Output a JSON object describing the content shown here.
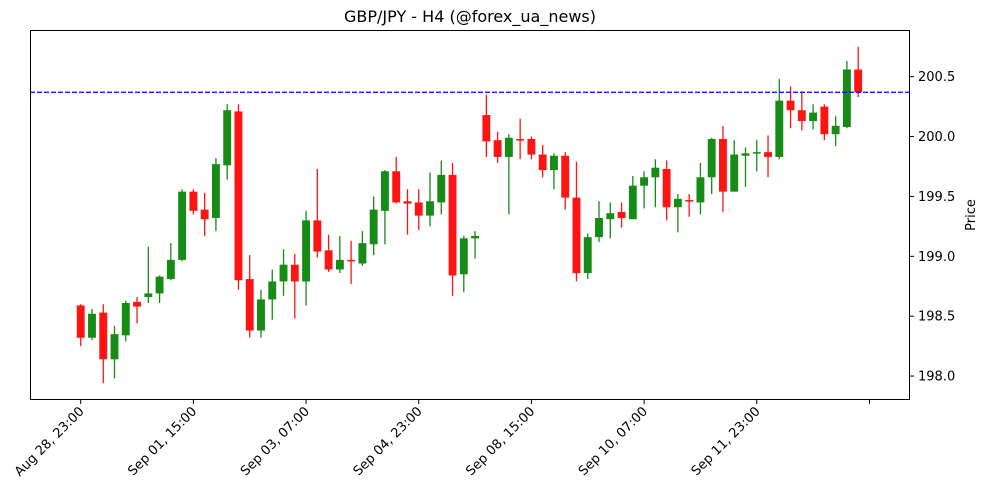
{
  "chart_data": {
    "type": "candlestick",
    "title": "GBP/JPY - H4 (@forex_ua_news)",
    "xlabel": "",
    "ylabel": "Price",
    "y_axis_side": "right",
    "ylim": [
      197.8,
      200.89
    ],
    "xlim": [
      -4.5,
      73.6
    ],
    "yticks": [
      198.0,
      198.5,
      199.0,
      199.5,
      200.0,
      200.5
    ],
    "ytick_labels": [
      "198.0",
      "198.5",
      "199.0",
      "199.5",
      "200.0",
      "200.5"
    ],
    "xticks": [
      0,
      10,
      20,
      30,
      40,
      50,
      60,
      70
    ],
    "xtick_labels": [
      "Aug 28, 23:00",
      "Sep 01, 15:00",
      "Sep 03, 07:00",
      "Sep 04, 23:00",
      "Sep 08, 15:00",
      "Sep 10, 07:00",
      "Sep 11, 23:00",
      ""
    ],
    "grid": false,
    "colors": {
      "up": "#168b16",
      "down": "#ff1414",
      "hline": "#0000ff"
    },
    "hline": {
      "value": 200.37,
      "style": "dashed"
    },
    "ohlc": [
      [
        198.59,
        198.6,
        198.25,
        198.32
      ],
      [
        198.32,
        198.56,
        198.3,
        198.52
      ],
      [
        198.53,
        198.6,
        197.94,
        198.14
      ],
      [
        198.14,
        198.42,
        197.98,
        198.35
      ],
      [
        198.34,
        198.63,
        198.29,
        198.61
      ],
      [
        198.62,
        198.66,
        198.44,
        198.58
      ],
      [
        198.66,
        199.08,
        198.61,
        198.69
      ],
      [
        198.69,
        198.84,
        198.61,
        198.83
      ],
      [
        198.81,
        199.11,
        198.8,
        198.97
      ],
      [
        198.97,
        199.56,
        198.96,
        199.54
      ],
      [
        199.54,
        199.56,
        199.35,
        199.38
      ],
      [
        199.39,
        199.53,
        199.17,
        199.31
      ],
      [
        199.32,
        199.82,
        199.21,
        199.77
      ],
      [
        199.76,
        200.27,
        199.64,
        200.22
      ],
      [
        200.21,
        200.27,
        198.72,
        198.8
      ],
      [
        198.81,
        199.01,
        198.32,
        198.38
      ],
      [
        198.38,
        198.72,
        198.32,
        198.64
      ],
      [
        198.64,
        198.89,
        198.47,
        198.79
      ],
      [
        198.79,
        199.06,
        198.67,
        198.93
      ],
      [
        198.93,
        199.02,
        198.48,
        198.79
      ],
      [
        198.79,
        199.38,
        198.59,
        199.3
      ],
      [
        199.3,
        199.73,
        198.99,
        199.04
      ],
      [
        199.05,
        199.18,
        198.87,
        198.89
      ],
      [
        198.89,
        199.17,
        198.86,
        198.97
      ],
      [
        198.97,
        199.13,
        198.77,
        198.96
      ],
      [
        198.94,
        199.21,
        198.92,
        199.11
      ],
      [
        199.1,
        199.5,
        199.01,
        199.39
      ],
      [
        199.38,
        199.72,
        199.1,
        199.71
      ],
      [
        199.71,
        199.83,
        199.44,
        199.45
      ],
      [
        199.46,
        199.56,
        199.18,
        199.44
      ],
      [
        199.45,
        199.56,
        199.22,
        199.34
      ],
      [
        199.34,
        199.7,
        199.25,
        199.46
      ],
      [
        199.45,
        199.8,
        199.35,
        199.68
      ],
      [
        199.68,
        199.78,
        198.67,
        198.84
      ],
      [
        198.85,
        199.17,
        198.7,
        199.15
      ],
      [
        199.15,
        199.21,
        198.98,
        199.17
      ],
      [
        200.18,
        200.35,
        199.83,
        199.96
      ],
      [
        199.97,
        200.04,
        199.78,
        199.83
      ],
      [
        199.83,
        200.02,
        199.35,
        199.99
      ],
      [
        199.98,
        200.15,
        199.81,
        199.97
      ],
      [
        199.98,
        200.0,
        199.81,
        199.85
      ],
      [
        199.85,
        199.93,
        199.66,
        199.72
      ],
      [
        199.72,
        199.86,
        199.56,
        199.84
      ],
      [
        199.84,
        199.87,
        199.39,
        199.49
      ],
      [
        199.49,
        199.79,
        198.79,
        198.86
      ],
      [
        198.86,
        199.19,
        198.81,
        199.16
      ],
      [
        199.16,
        199.46,
        199.12,
        199.32
      ],
      [
        199.31,
        199.45,
        199.15,
        199.36
      ],
      [
        199.37,
        199.45,
        199.24,
        199.32
      ],
      [
        199.31,
        199.67,
        199.31,
        199.59
      ],
      [
        199.59,
        199.71,
        199.4,
        199.66
      ],
      [
        199.66,
        199.81,
        199.41,
        199.74
      ],
      [
        199.73,
        199.8,
        199.3,
        199.41
      ],
      [
        199.41,
        199.52,
        199.2,
        199.48
      ],
      [
        199.47,
        199.52,
        199.33,
        199.46
      ],
      [
        199.45,
        199.78,
        199.35,
        199.66
      ],
      [
        199.66,
        199.99,
        199.52,
        199.98
      ],
      [
        199.98,
        200.09,
        199.37,
        199.54
      ],
      [
        199.54,
        199.97,
        199.54,
        199.85
      ],
      [
        199.84,
        199.91,
        199.58,
        199.86
      ],
      [
        199.86,
        199.97,
        199.71,
        199.87
      ],
      [
        199.87,
        200.01,
        199.66,
        199.83
      ],
      [
        199.83,
        200.48,
        199.81,
        200.3
      ],
      [
        200.3,
        200.42,
        200.07,
        200.22
      ],
      [
        200.22,
        200.37,
        200.05,
        200.13
      ],
      [
        200.13,
        200.27,
        200.06,
        200.2
      ],
      [
        200.25,
        200.27,
        199.97,
        200.02
      ],
      [
        200.02,
        200.17,
        199.92,
        200.09
      ],
      [
        200.08,
        200.63,
        200.07,
        200.56
      ],
      [
        200.56,
        200.75,
        200.33,
        200.37
      ]
    ]
  }
}
